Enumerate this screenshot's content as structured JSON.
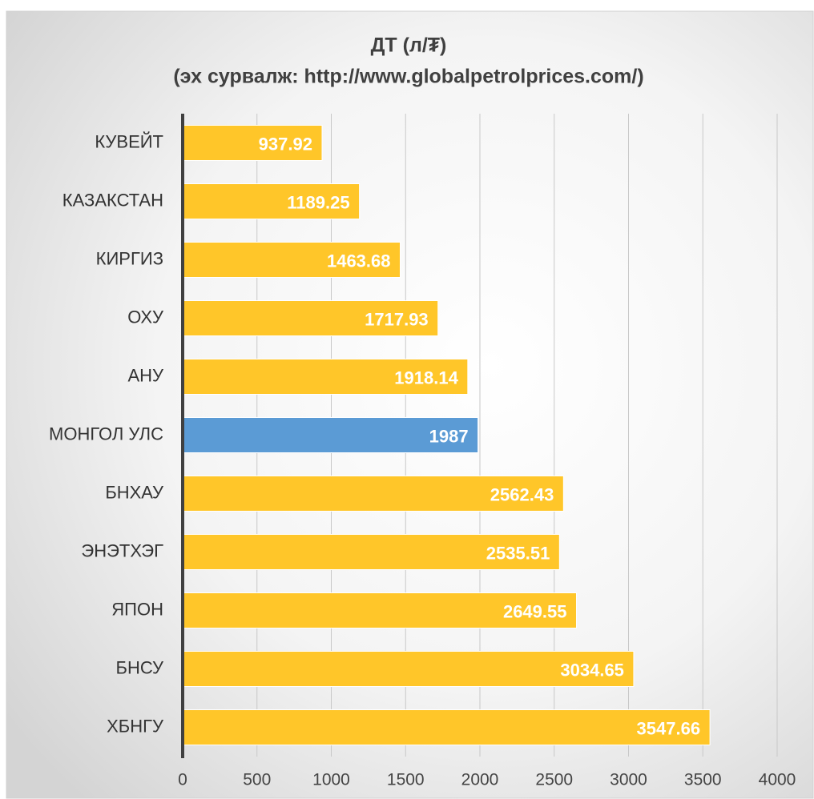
{
  "chart_data": {
    "type": "bar",
    "orientation": "horizontal",
    "title": "ДТ (л/₮)",
    "subtitle": "(эх сурвалж: http://www.globalpetrolprices.com/)",
    "categories": [
      "КУВЕЙТ",
      "КАЗАКСТАН",
      "КИРГИЗ",
      "ОХУ",
      "АНУ",
      "МОНГОЛ УЛС",
      "БНХАУ",
      "ЭНЭТХЭГ",
      "ЯПОН",
      "БНСУ",
      "ХБНГУ"
    ],
    "values": [
      937.92,
      1189.25,
      1463.68,
      1717.93,
      1918.14,
      1987,
      2562.43,
      2535.51,
      2649.55,
      3034.65,
      3547.66
    ],
    "colors": [
      "#FFC629",
      "#FFC629",
      "#FFC629",
      "#FFC629",
      "#FFC629",
      "#5B9BD5",
      "#FFC629",
      "#FFC629",
      "#FFC629",
      "#FFC629",
      "#FFC629"
    ],
    "xlim": [
      0,
      4000
    ],
    "xticks": [
      0,
      500,
      1000,
      1500,
      2000,
      2500,
      3000,
      3500,
      4000
    ],
    "grid": true
  }
}
